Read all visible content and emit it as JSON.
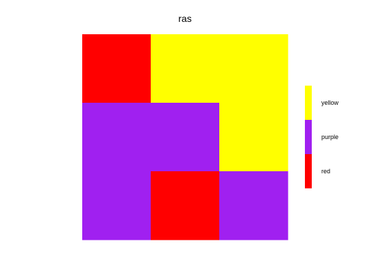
{
  "chart_data": {
    "type": "heatmap",
    "title": "ras",
    "xlabel": "",
    "ylabel": "",
    "grid": false,
    "legend_position": "right",
    "categories": [
      "red",
      "purple",
      "yellow"
    ],
    "colors": {
      "red": "#ff0000",
      "purple": "#a020f0",
      "yellow": "#ffff00"
    },
    "rows": 3,
    "cols": 3,
    "cells": [
      [
        "red",
        "yellow",
        "yellow"
      ],
      [
        "purple",
        "purple",
        "yellow"
      ],
      [
        "purple",
        "red",
        "purple"
      ]
    ],
    "legend": [
      {
        "label": "yellow",
        "color": "#ffff00"
      },
      {
        "label": "purple",
        "color": "#a020f0"
      },
      {
        "label": "red",
        "color": "#ff0000"
      }
    ]
  }
}
